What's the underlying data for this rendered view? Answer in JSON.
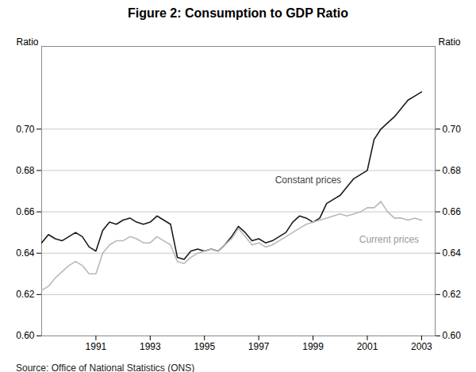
{
  "chart_data": {
    "type": "line",
    "title": "Figure 2: Consumption to GDP Ratio",
    "ylabel": "Ratio",
    "y2label": "Ratio",
    "source": "Source: Office of National Statistics (ONS)",
    "x": [
      1989,
      1989.25,
      1989.5,
      1989.75,
      1990,
      1990.25,
      1990.5,
      1990.75,
      1991,
      1991.25,
      1991.5,
      1991.75,
      1992,
      1992.25,
      1992.5,
      1992.75,
      1993,
      1993.25,
      1993.5,
      1993.75,
      1994,
      1994.25,
      1994.5,
      1994.75,
      1995,
      1995.25,
      1995.5,
      1995.75,
      1996,
      1996.25,
      1996.5,
      1996.75,
      1997,
      1997.25,
      1997.5,
      1997.75,
      1998,
      1998.25,
      1998.5,
      1998.75,
      1999,
      1999.25,
      1999.5,
      1999.75,
      2000,
      2000.25,
      2000.5,
      2000.75,
      2001,
      2001.25,
      2001.5,
      2001.75,
      2002,
      2002.25,
      2002.5,
      2002.75,
      2003
    ],
    "series": [
      {
        "name": "Constant prices",
        "color": "#1a1a1a",
        "values": [
          0.645,
          0.649,
          0.647,
          0.646,
          0.648,
          0.65,
          0.648,
          0.643,
          0.641,
          0.651,
          0.655,
          0.654,
          0.656,
          0.657,
          0.655,
          0.654,
          0.655,
          0.658,
          0.656,
          0.654,
          0.638,
          0.637,
          0.641,
          0.642,
          0.641,
          0.642,
          0.641,
          0.644,
          0.648,
          0.653,
          0.65,
          0.646,
          0.647,
          0.645,
          0.646,
          0.648,
          0.65,
          0.655,
          0.658,
          0.657,
          0.655,
          0.657,
          0.664,
          0.666,
          0.668,
          0.672,
          0.676,
          0.678,
          0.68,
          0.695,
          0.7,
          0.703,
          0.706,
          0.71,
          0.714,
          0.716,
          0.718
        ]
      },
      {
        "name": "Current prices",
        "color": "#b8b8b8",
        "values": [
          0.622,
          0.624,
          0.628,
          0.631,
          0.634,
          0.636,
          0.634,
          0.63,
          0.63,
          0.64,
          0.644,
          0.646,
          0.646,
          0.648,
          0.647,
          0.645,
          0.645,
          0.648,
          0.646,
          0.644,
          0.636,
          0.635,
          0.638,
          0.64,
          0.641,
          0.642,
          0.641,
          0.644,
          0.647,
          0.652,
          0.648,
          0.644,
          0.645,
          0.643,
          0.644,
          0.646,
          0.648,
          0.65,
          0.652,
          0.654,
          0.655,
          0.656,
          0.657,
          0.658,
          0.659,
          0.658,
          0.659,
          0.66,
          0.662,
          0.662,
          0.665,
          0.66,
          0.657,
          0.657,
          0.656,
          0.657,
          0.656
        ]
      }
    ],
    "xlim": [
      1989.0,
      2003.5
    ],
    "xticks": [
      1991,
      1993,
      1995,
      1997,
      1999,
      2001,
      2003
    ],
    "ylim": [
      0.6,
      0.74
    ],
    "yticks": [
      {
        "value": 0.6,
        "label": "0.60"
      },
      0.62,
      0.64,
      0.66,
      0.68,
      {
        "value": 0.7,
        "label": "0.70"
      }
    ],
    "y2lim": [
      0.6,
      0.74
    ],
    "y2ticks": [
      {
        "value": 0.6,
        "label": "0.60"
      },
      0.62,
      0.64,
      0.66,
      0.68,
      {
        "value": 0.7,
        "label": "0.70"
      }
    ],
    "grid": true,
    "annotations": [
      {
        "text": "Constant prices",
        "x": 1997.6,
        "y": 0.674,
        "color": "#444444"
      },
      {
        "text": "Current prices",
        "x": 2000.7,
        "y": 0.645,
        "color": "#999999"
      }
    ]
  }
}
